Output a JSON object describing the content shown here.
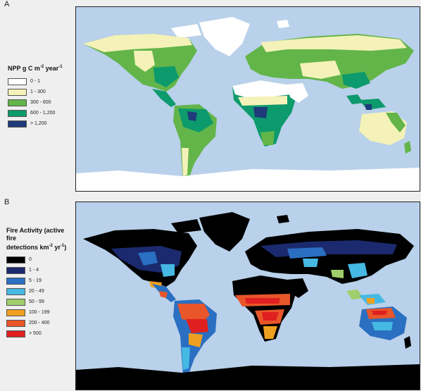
{
  "panels": {
    "a": {
      "label": "A",
      "legend": {
        "title_prefix": "NPP g C m",
        "title_sup1": "-2",
        "title_mid": " year",
        "title_sup2": "-1",
        "items": [
          {
            "label": "0 - 1",
            "color": "#ffffff"
          },
          {
            "label": "1 - 300",
            "color": "#f4f2b8"
          },
          {
            "label": "300 - 600",
            "color": "#63b54a"
          },
          {
            "label": "600 - 1,200",
            "color": "#0d9a6c"
          },
          {
            "label": "> 1,200",
            "color": "#1e3a7a"
          }
        ]
      }
    },
    "b": {
      "label": "B",
      "legend": {
        "title_line1": "Fire Activity (active fire",
        "title_prefix": "detections km",
        "title_sup1": "-2",
        "title_mid": " yr",
        "title_sup2": "-1",
        "title_suffix": ")",
        "items": [
          {
            "label": "0",
            "color": "#000000"
          },
          {
            "label": "1 - 4",
            "color": "#1b2a6e"
          },
          {
            "label": "5 - 19",
            "color": "#2a6fc2"
          },
          {
            "label": "20 - 49",
            "color": "#45b9e3"
          },
          {
            "label": "50 - 99",
            "color": "#9fce6a"
          },
          {
            "label": "100 - 199",
            "color": "#f0a020"
          },
          {
            "label": "200 - 400",
            "color": "#e8562a"
          },
          {
            "label": "> 500",
            "color": "#e02020"
          }
        ]
      }
    }
  },
  "colors": {
    "ocean": "#b9d1ea"
  }
}
